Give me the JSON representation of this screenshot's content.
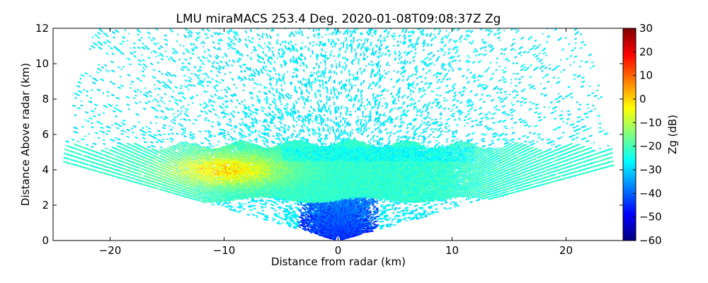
{
  "chart_data": {
    "type": "heatmap",
    "title": "LMU miraMACS 253.4 Deg. 2020-01-08T09:08:37Z  Zg",
    "xlabel": "Distance from radar (km)",
    "ylabel": "Distance Above radar  (km)",
    "xlim": [
      -25,
      25
    ],
    "ylim": [
      0,
      12
    ],
    "x_ticks": [
      -20,
      -10,
      0,
      10,
      20
    ],
    "x_tick_labels": [
      "−20",
      "−10",
      "0",
      "10",
      "20"
    ],
    "y_ticks": [
      0,
      2,
      4,
      6,
      8,
      10,
      12
    ],
    "y_tick_labels": [
      "0",
      "2",
      "4",
      "6",
      "8",
      "10",
      "12"
    ],
    "scan": {
      "max_range_km": 24.5,
      "elevation_min_deg": 10,
      "elevation_max_deg": 170
    },
    "colorbar": {
      "label": "Zg (dB)",
      "range": [
        -60,
        30
      ],
      "ticks": [
        -60,
        -50,
        -40,
        -30,
        -20,
        -10,
        0,
        10,
        20,
        30
      ],
      "tick_labels": [
        "−60",
        "−50",
        "−40",
        "−30",
        "−20",
        "−10",
        "0",
        "10",
        "20",
        "30"
      ],
      "colormap": [
        "#00007f",
        "#0000ff",
        "#0080ff",
        "#00ffff",
        "#80ff80",
        "#ffff00",
        "#ff8000",
        "#ff0000",
        "#7f0000"
      ]
    },
    "features": [
      {
        "name": "background clutter",
        "zg_db": -28
      },
      {
        "name": "cloud layer",
        "top_km": 5.5,
        "base_km": 2.3,
        "zg_db": -22
      },
      {
        "name": "core",
        "x_km": -10,
        "y_km": 4.0,
        "zg_db": -2
      },
      {
        "name": "near-radar weak echoes",
        "x_km": 0,
        "y_km": 0.5,
        "zg_db": -45
      }
    ]
  }
}
